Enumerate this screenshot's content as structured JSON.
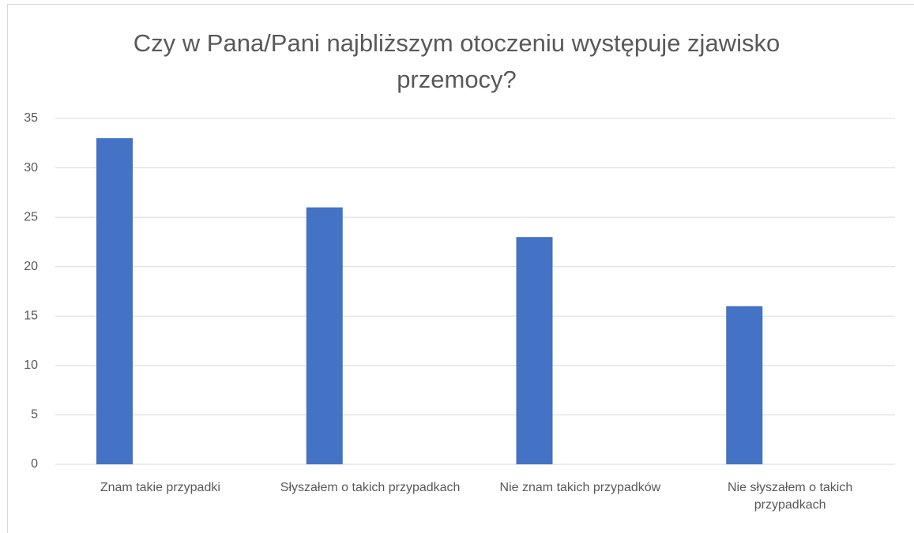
{
  "chart_data": {
    "type": "bar",
    "title": "Czy w Pana/Pani najbliższym otoczeniu występuje zjawisko przemocy?",
    "categories": [
      "Znam takie przypadki",
      "Słyszałem o takich przypadkach",
      "Nie znam takich przypadków",
      "Nie słyszałem o takich przypadkach"
    ],
    "values": [
      33,
      26,
      23,
      16
    ],
    "color": "#4472c4",
    "ylim": [
      0,
      35
    ],
    "yticks": [
      0,
      5,
      10,
      15,
      20,
      25,
      30,
      35
    ],
    "grid": true
  }
}
